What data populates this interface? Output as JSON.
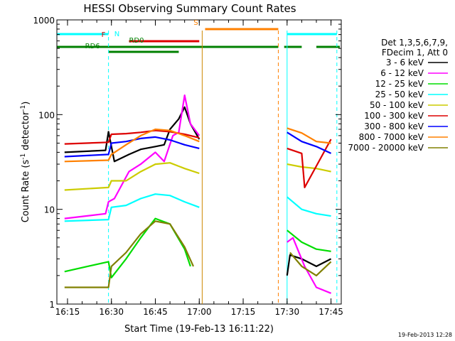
{
  "chart_data": {
    "type": "line",
    "title": "HESSI Observing Summary Count Rates",
    "xlabel": "Start Time (19-Feb-13 16:11:22)",
    "ylabel": "Count Rate (s",
    "ylabel_sup1": "-1",
    "ylabel_mid": " detector",
    "ylabel_sup2": "-1",
    "ylabel_end": ")",
    "y_scale": "log",
    "ylim": [
      1,
      1000
    ],
    "xlim": [
      "16:11:22",
      "17:48:30"
    ],
    "x_ticks": [
      "16:15",
      "16:30",
      "16:45",
      "17:00",
      "17:15",
      "17:30",
      "17:45"
    ],
    "y_ticks": [
      "1",
      "10",
      "100",
      "1000"
    ],
    "legend": {
      "header1": "Det 1,3,5,6,7,9,",
      "header2": "FDecim 1, Att 0",
      "placement": "right",
      "entries": [
        {
          "label": "3 - 6 keV",
          "color": "#000000"
        },
        {
          "label": "6 - 12 keV",
          "color": "#ff00ff"
        },
        {
          "label": "12 - 25 keV",
          "color": "#00dd00"
        },
        {
          "label": "25 - 50 keV",
          "color": "#00ffff"
        },
        {
          "label": "50 - 100 keV",
          "color": "#cccc00"
        },
        {
          "label": "100 - 300 keV",
          "color": "#dd0000"
        },
        {
          "label": "300 - 800 keV",
          "color": "#0000ff"
        },
        {
          "label": "800 - 7000 keV",
          "color": "#ff8000"
        },
        {
          "label": "7000 - 20000 keV",
          "color": "#808000"
        }
      ]
    },
    "flag_bars": [
      {
        "label": "N",
        "color": "#00ffff",
        "label_at": "16:30"
      },
      {
        "label": "S",
        "color": "#ff8000",
        "label_at": "17:00"
      },
      {
        "label": "F",
        "color": "#dd0000",
        "label_at": "16:29"
      },
      {
        "label": "RD0",
        "color": "#dd0000",
        "label_at": "16:36"
      },
      {
        "label": "RD6",
        "color": "#008000",
        "label_at": "16:21"
      }
    ],
    "series": [
      {
        "name": "3 - 6 keV",
        "color": "#000000",
        "x": [
          "16:14",
          "16:28",
          "16:29",
          "16:31",
          "16:36",
          "16:40",
          "16:45",
          "16:48",
          "16:50",
          "16:53",
          "16:55",
          "16:57",
          "17:00",
          "17:30",
          "17:31",
          "17:35",
          "17:40",
          "17:45"
        ],
        "values": [
          40,
          42,
          66,
          32,
          38,
          43,
          46,
          48,
          70,
          90,
          120,
          80,
          55,
          2.0,
          3.3,
          3.0,
          2.5,
          3.0
        ]
      },
      {
        "name": "6 - 12 keV",
        "color": "#ff00ff",
        "x": [
          "16:14",
          "16:28",
          "16:29",
          "16:31",
          "16:36",
          "16:40",
          "16:45",
          "16:48",
          "16:51",
          "16:53",
          "16:55",
          "16:57",
          "17:00",
          "17:30",
          "17:32",
          "17:36",
          "17:40",
          "17:45"
        ],
        "values": [
          8,
          9,
          12,
          13,
          25,
          30,
          40,
          32,
          60,
          65,
          160,
          80,
          60,
          4.5,
          5.0,
          2.5,
          1.5,
          1.3
        ]
      },
      {
        "name": "12 - 25 keV",
        "color": "#00dd00",
        "x": [
          "16:14",
          "16:29",
          "16:30",
          "16:35",
          "16:40",
          "16:45",
          "16:50",
          "16:55",
          "16:57",
          "17:30",
          "17:35",
          "17:40",
          "17:45"
        ],
        "values": [
          2.2,
          2.8,
          1.9,
          3.0,
          5,
          8,
          7,
          3.8,
          2.5,
          6,
          4.5,
          3.8,
          3.6
        ]
      },
      {
        "name": "25 - 50 keV",
        "color": "#00ffff",
        "x": [
          "16:14",
          "16:29",
          "16:30",
          "16:35",
          "16:40",
          "16:45",
          "16:50",
          "16:55",
          "17:00",
          "17:30",
          "17:35",
          "17:40",
          "17:45"
        ],
        "values": [
          7.5,
          7.8,
          10.5,
          11,
          13,
          14.5,
          14,
          12,
          10.5,
          13.5,
          10,
          9,
          8.5
        ]
      },
      {
        "name": "50 - 100 keV",
        "color": "#cccc00",
        "x": [
          "16:14",
          "16:29",
          "16:30",
          "16:35",
          "16:40",
          "16:45",
          "16:50",
          "16:55",
          "17:00",
          "17:30",
          "17:35",
          "17:40",
          "17:45"
        ],
        "values": [
          16,
          17,
          20,
          20,
          25,
          30,
          31,
          27,
          24,
          30,
          28,
          27,
          25
        ]
      },
      {
        "name": "100 - 300 keV",
        "color": "#dd0000",
        "x": [
          "16:14",
          "16:29",
          "16:30",
          "16:35",
          "16:40",
          "16:45",
          "16:50",
          "16:55",
          "17:00",
          "17:30",
          "17:35",
          "17:36",
          "17:45"
        ],
        "values": [
          49,
          51,
          62,
          63,
          65,
          68,
          66,
          62,
          57,
          44,
          39,
          17,
          55
        ]
      },
      {
        "name": "300 - 800 keV",
        "color": "#0000ff",
        "x": [
          "16:14",
          "16:29",
          "16:30",
          "16:35",
          "16:40",
          "16:45",
          "16:50",
          "16:55",
          "17:00",
          "17:30",
          "17:35",
          "17:40",
          "17:45"
        ],
        "values": [
          36,
          38,
          50,
          52,
          56,
          58,
          54,
          48,
          44,
          65,
          52,
          46,
          39
        ]
      },
      {
        "name": "800 - 7000 keV",
        "color": "#ff8000",
        "x": [
          "16:14",
          "16:29",
          "16:30",
          "16:35",
          "16:40",
          "16:45",
          "16:50",
          "16:55",
          "17:00",
          "17:30",
          "17:35",
          "17:40",
          "17:45"
        ],
        "values": [
          32,
          33,
          38,
          48,
          60,
          70,
          68,
          60,
          52,
          72,
          64,
          52,
          50
        ]
      },
      {
        "name": "7000 - 20000 keV",
        "color": "#808000",
        "x": [
          "16:14",
          "16:29",
          "16:30",
          "16:35",
          "16:40",
          "16:45",
          "16:50",
          "16:55",
          "16:58",
          "17:31",
          "17:35",
          "17:40",
          "17:45"
        ],
        "values": [
          1.5,
          1.5,
          2.5,
          3.5,
          5.5,
          7.5,
          7.0,
          4.0,
          2.5,
          3.5,
          2.5,
          2.0,
          2.8
        ]
      }
    ]
  },
  "footer_timestamp": "19-Feb-2013 12:28"
}
